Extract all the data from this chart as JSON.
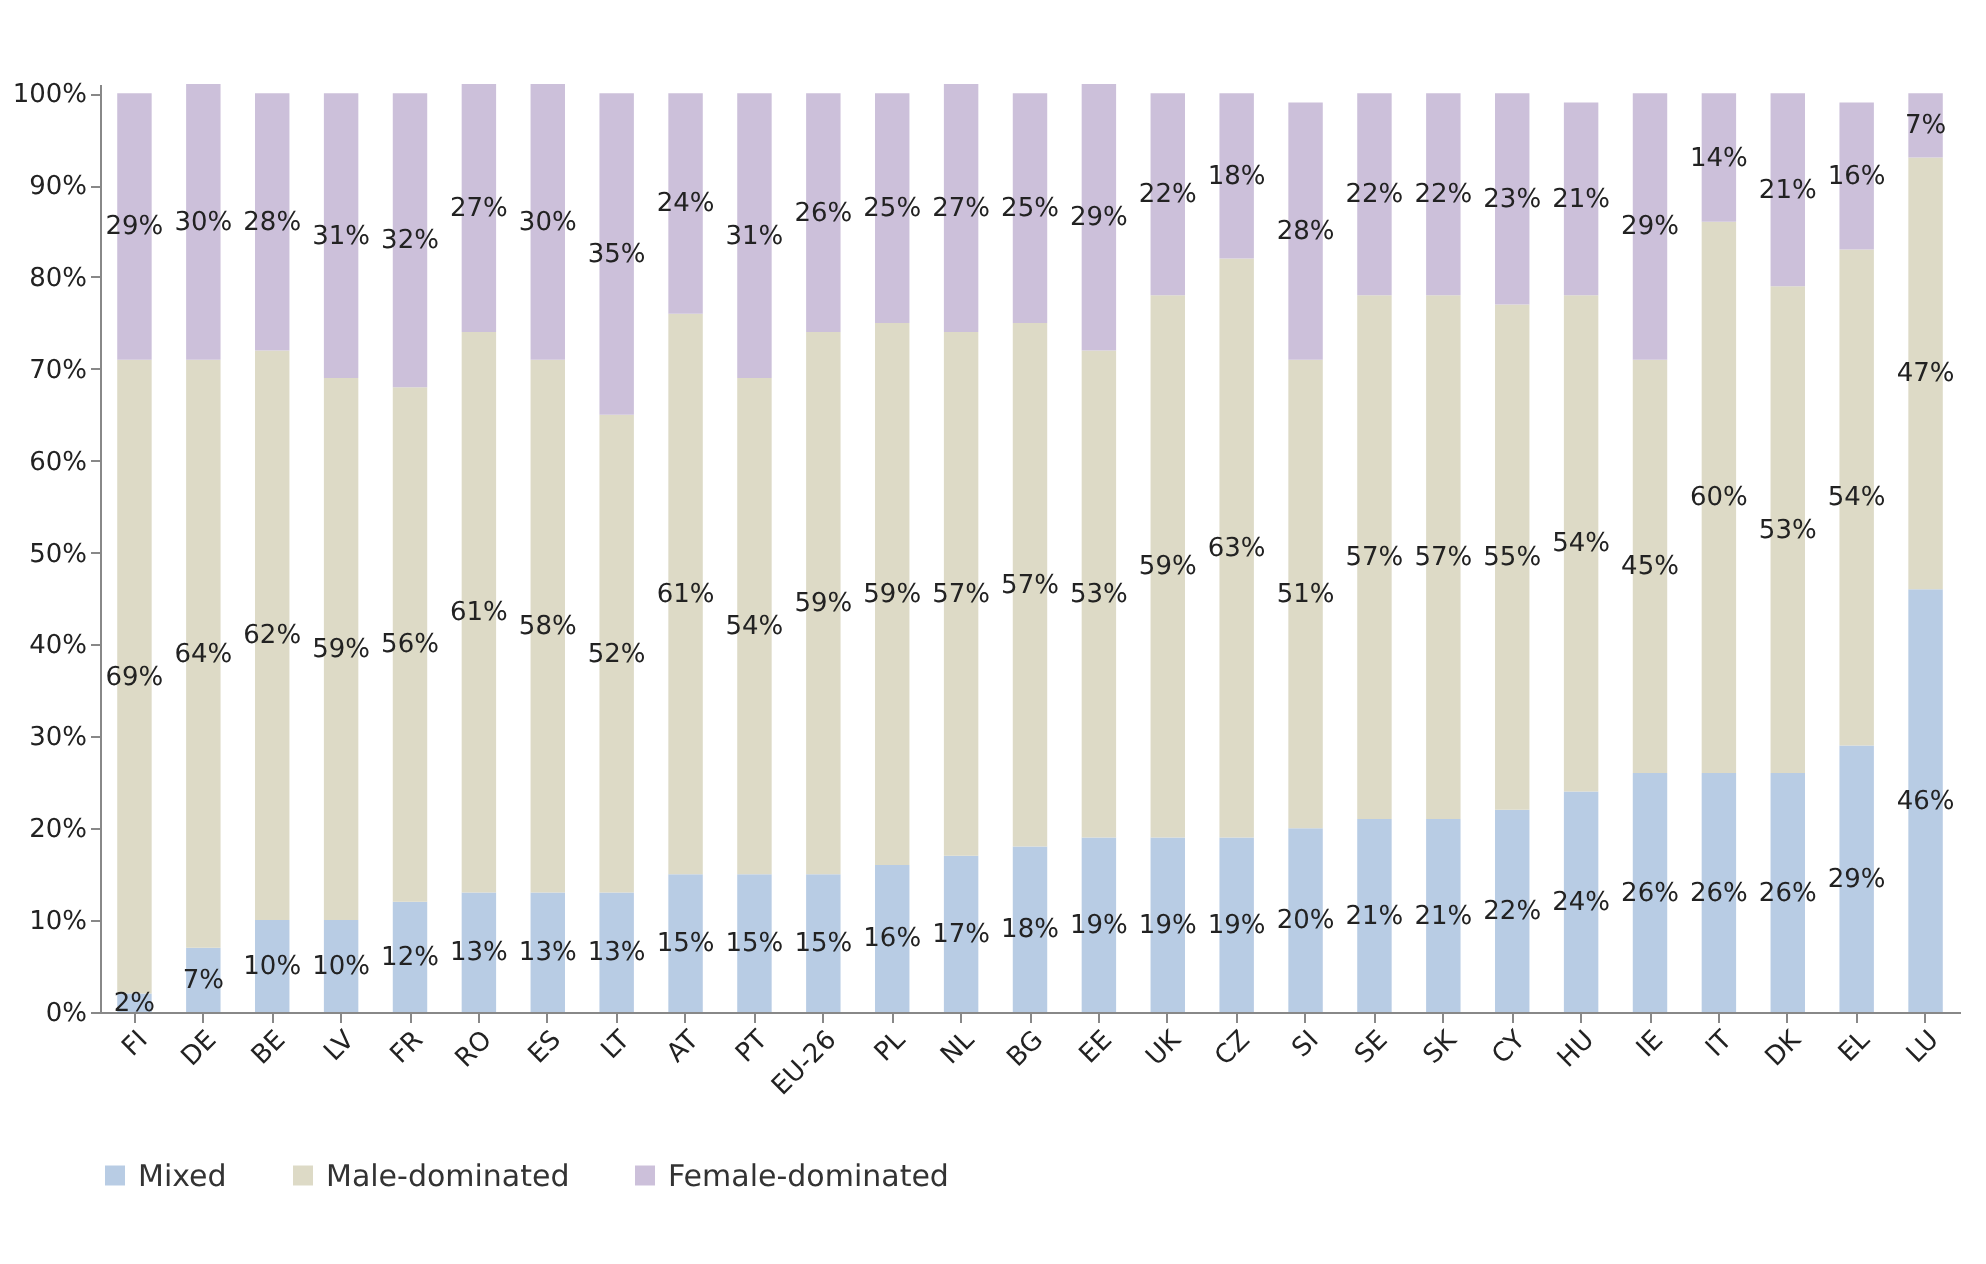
{
  "chart_data": {
    "type": "bar",
    "stacked": true,
    "legend": "bottom",
    "grid": false,
    "categories": [
      "FI",
      "DE",
      "BE",
      "LV",
      "FR",
      "RO",
      "ES",
      "LT",
      "AT",
      "PT",
      "EU-26",
      "PL",
      "NL",
      "BG",
      "EE",
      "UK",
      "CZ",
      "SI",
      "SE",
      "SK",
      "CY",
      "HU",
      "IE",
      "IT",
      "DK",
      "EL",
      "LU"
    ],
    "ylim": [
      0,
      101
    ],
    "yticks": [
      {
        "value": 0,
        "label": "0%"
      },
      {
        "value": 10,
        "label": "10%"
      },
      {
        "value": 20,
        "label": "20%"
      },
      {
        "value": 30,
        "label": "30%"
      },
      {
        "value": 40,
        "label": "40%"
      },
      {
        "value": 50,
        "label": "50%"
      },
      {
        "value": 60,
        "label": "60%"
      },
      {
        "value": 70,
        "label": "70%"
      },
      {
        "value": 80,
        "label": "80%"
      },
      {
        "value": 90,
        "label": "90%"
      },
      {
        "value": 100,
        "label": "100%"
      }
    ],
    "series": [
      {
        "name": "Mixed",
        "color": "#b8cce4",
        "values": [
          2,
          7,
          10,
          10,
          12,
          13,
          13,
          13,
          15,
          15,
          15,
          16,
          17,
          18,
          19,
          19,
          19,
          20,
          21,
          21,
          22,
          24,
          26,
          26,
          26,
          29,
          46
        ],
        "value_labels": [
          "2%",
          "7%",
          "10%",
          "10%",
          "12%",
          "13%",
          "13%",
          "13%",
          "15%",
          "15%",
          "15%",
          "16%",
          "17%",
          "18%",
          "19%",
          "19%",
          "19%",
          "20%",
          "21%",
          "21%",
          "22%",
          "24%",
          "26%",
          "26%",
          "26%",
          "29%",
          "46%"
        ]
      },
      {
        "name": "Male-dominated",
        "color": "#dddac6",
        "values": [
          69,
          64,
          62,
          59,
          56,
          61,
          58,
          52,
          61,
          54,
          59,
          59,
          57,
          57,
          53,
          59,
          63,
          51,
          57,
          57,
          55,
          54,
          45,
          60,
          53,
          54,
          47
        ],
        "value_labels": [
          "69%",
          "64%",
          "62%",
          "59%",
          "56%",
          "61%",
          "58%",
          "52%",
          "61%",
          "54%",
          "59%",
          "59%",
          "57%",
          "57%",
          "53%",
          "59%",
          "63%",
          "51%",
          "57%",
          "57%",
          "55%",
          "54%",
          "45%",
          "60%",
          "53%",
          "54%",
          "47%"
        ]
      },
      {
        "name": "Female-dominated",
        "color": "#ccc0da",
        "values": [
          29,
          30,
          28,
          31,
          32,
          27,
          30,
          35,
          24,
          31,
          26,
          25,
          27,
          25,
          29,
          22,
          18,
          28,
          22,
          22,
          23,
          21,
          29,
          14,
          21,
          16,
          7
        ],
        "value_labels": [
          "29%",
          "30%",
          "28%",
          "31%",
          "32%",
          "27%",
          "30%",
          "35%",
          "24%",
          "31%",
          "26%",
          "25%",
          "27%",
          "25%",
          "29%",
          "22%",
          "18%",
          "28%",
          "22%",
          "22%",
          "23%",
          "21%",
          "29%",
          "14%",
          "21%",
          "16%",
          "7%"
        ]
      }
    ]
  }
}
